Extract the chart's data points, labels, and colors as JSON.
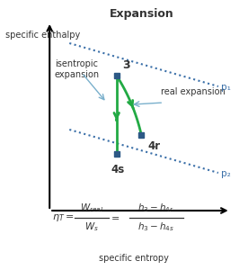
{
  "title": "Expansion",
  "xlabel": "specific entropy",
  "ylabel": "specific enthalpy",
  "background_color": "#ffffff",
  "point3": [
    0.47,
    0.72
  ],
  "point4s": [
    0.47,
    0.43
  ],
  "point4r": [
    0.57,
    0.5
  ],
  "dot_color": "#2d5986",
  "line_color": "#3a6fa8",
  "green_color": "#22aa44",
  "label_color": "#333333",
  "annotation_arrow_color": "#7ab0cc",
  "p1_label": "p₁",
  "p2_label": "p₂",
  "point3_label": "3",
  "point4s_label": "4s",
  "point4r_label": "4r",
  "figsize": [
    2.76,
    3.0
  ],
  "dpi": 100
}
